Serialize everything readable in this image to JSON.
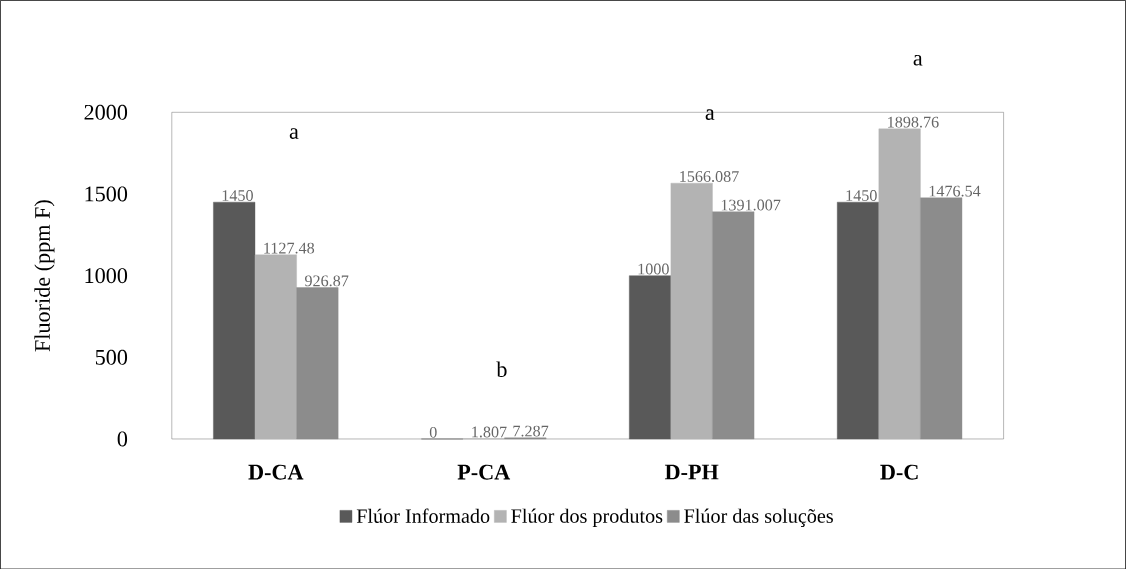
{
  "chart_data": {
    "type": "bar",
    "ylabel": "Fluoride (ppm F)",
    "categories": [
      "D-CA",
      "P-CA",
      "D-PH",
      "D-C"
    ],
    "series": [
      {
        "name": "Flúor Informado",
        "color": "#595959",
        "values": [
          1450,
          0,
          1000,
          1450
        ]
      },
      {
        "name": "Flúor dos produtos",
        "color": "#b3b3b3",
        "values": [
          1127.48,
          1.807,
          1566.087,
          1898.76
        ]
      },
      {
        "name": "Flúor das soluções",
        "color": "#8c8c8c",
        "values": [
          926.87,
          7.287,
          1391.007,
          1476.54
        ]
      }
    ],
    "ylim": [
      0,
      2000
    ],
    "yticks": [
      0,
      500,
      1000,
      1500,
      2000
    ],
    "data_labels": true,
    "legend": "bottom",
    "annotations": [
      "a",
      "b",
      "a",
      "a"
    ]
  }
}
